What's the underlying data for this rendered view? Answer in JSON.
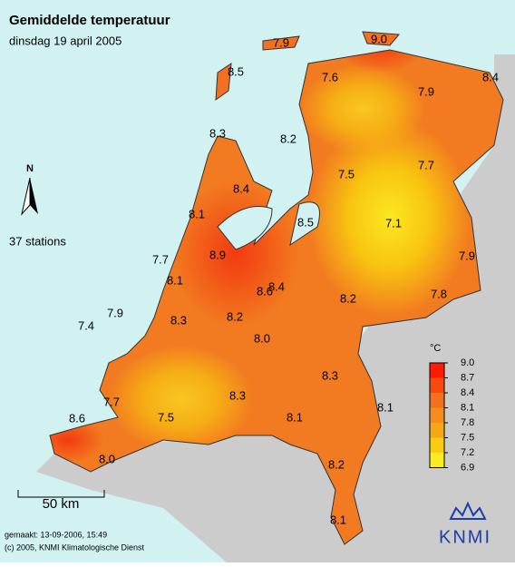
{
  "header": {
    "title": "Gemiddelde temperatuur",
    "subtitle": "dinsdag 19 april 2005"
  },
  "north": "N",
  "stations_note": "37 stations",
  "stations": [
    7.9,
    {
      "value": 9,
      "label": "9.0"
    },
    8.5,
    7.6,
    7.9,
    8.4,
    8.3,
    8.2,
    7.5,
    7.7,
    8.4,
    8.1,
    8.5,
    7.1,
    8.9,
    7.7,
    7.9,
    8.1,
    8.4,
    8.6,
    7.8,
    8.2,
    7.9,
    8.3,
    8.2,
    7.4,
    {
      "value": 8,
      "label": "8.0"
    },
    8.3,
    7.7,
    8.3,
    8.1,
    8.6,
    7.5,
    8.1,
    {
      "value": 8,
      "label": "8.0"
    },
    8.2,
    8.1
  ],
  "legend": {
    "unit": "°C",
    "ticks": [
      {
        "value": 9,
        "label": "9.0"
      },
      8.7,
      8.4,
      8.1,
      7.8,
      7.5,
      7.2,
      6.9
    ],
    "colors": [
      "#ff1a00",
      "#f54a10",
      "#f27020",
      "#f48c20",
      "#f5a815",
      "#f8cc10",
      "#fbec20"
    ]
  },
  "scale": "50 km",
  "footer": [
    "gemaakt: 13-09-2006, 15:49",
    "(c) 2005, KNMI Klimatologische Dienst"
  ],
  "logo": "KNMI"
}
